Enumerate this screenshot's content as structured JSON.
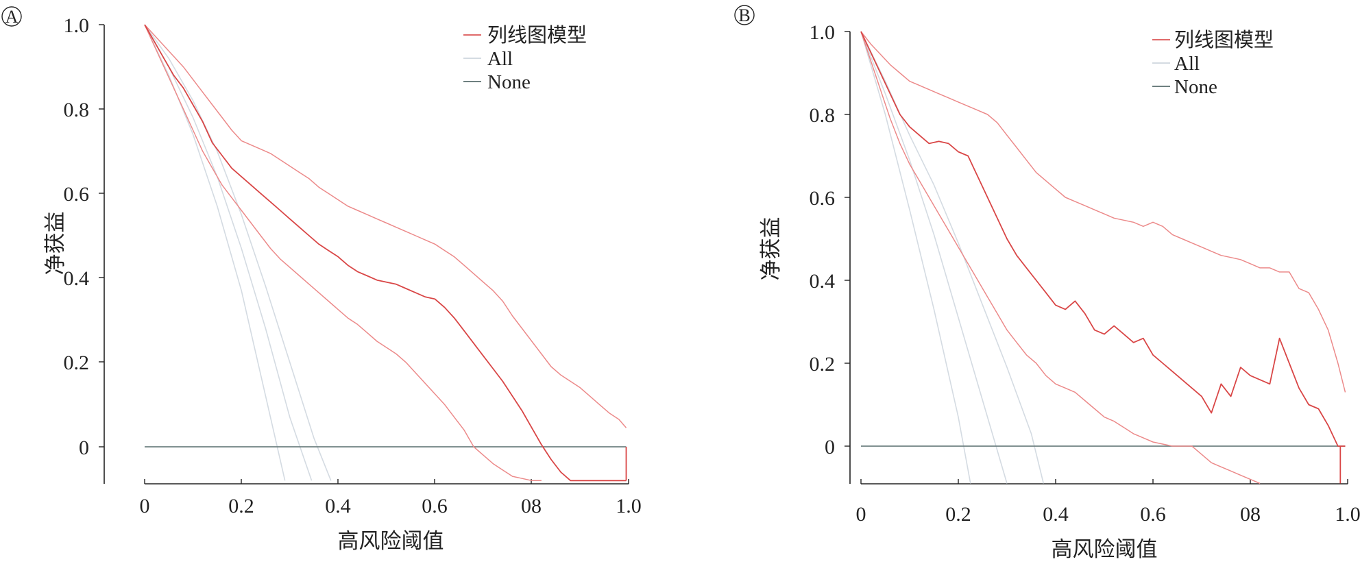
{
  "chart_data": [
    {
      "type": "line",
      "panel": "A",
      "xlabel": "高风险阈值",
      "ylabel": "净获益",
      "xlim": [
        0,
        1
      ],
      "ylim": [
        -0.08,
        1.0
      ],
      "x_ticks": [
        "0",
        "0.2",
        "0.4",
        "0.6",
        "08",
        "1.0"
      ],
      "y_ticks": [
        "1.0",
        "0.8",
        "0.6",
        "0.4",
        "0.2",
        "0"
      ],
      "legend_position": "top-right",
      "legend": [
        {
          "label": "列线图模型",
          "color": "#e06a6a"
        },
        {
          "label": "All",
          "color": "#d4dbe2"
        },
        {
          "label": "None",
          "color": "#6e8080"
        }
      ],
      "series": [
        {
          "name": "列线图模型",
          "role": "main",
          "color": "#d94646",
          "x": [
            0,
            0.02,
            0.04,
            0.06,
            0.08,
            0.1,
            0.12,
            0.14,
            0.16,
            0.18,
            0.2,
            0.22,
            0.24,
            0.26,
            0.28,
            0.3,
            0.32,
            0.34,
            0.36,
            0.38,
            0.4,
            0.42,
            0.44,
            0.46,
            0.48,
            0.5,
            0.52,
            0.54,
            0.56,
            0.58,
            0.6,
            0.62,
            0.64,
            0.66,
            0.68,
            0.7,
            0.72,
            0.74,
            0.76,
            0.78,
            0.8,
            0.82,
            0.84,
            0.86,
            0.88,
            0.9,
            0.92,
            0.94,
            0.96,
            0.98,
            0.995
          ],
          "y": [
            1.0,
            0.96,
            0.92,
            0.88,
            0.85,
            0.81,
            0.77,
            0.72,
            0.69,
            0.66,
            0.64,
            0.62,
            0.6,
            0.58,
            0.56,
            0.54,
            0.52,
            0.5,
            0.48,
            0.465,
            0.45,
            0.43,
            0.415,
            0.405,
            0.395,
            0.39,
            0.385,
            0.375,
            0.365,
            0.355,
            0.35,
            0.33,
            0.305,
            0.275,
            0.245,
            0.215,
            0.185,
            0.155,
            0.12,
            0.085,
            0.045,
            0.005,
            -0.03,
            -0.06,
            -0.08,
            -0.08,
            -0.08,
            -0.08,
            -0.08,
            -0.08,
            -0.08
          ]
        },
        {
          "name": "列线图模型",
          "role": "upper",
          "color": "#ec8a8a",
          "x": [
            0,
            0.02,
            0.04,
            0.06,
            0.08,
            0.1,
            0.12,
            0.14,
            0.16,
            0.18,
            0.2,
            0.22,
            0.24,
            0.26,
            0.28,
            0.3,
            0.32,
            0.34,
            0.36,
            0.38,
            0.4,
            0.42,
            0.44,
            0.46,
            0.48,
            0.5,
            0.52,
            0.54,
            0.56,
            0.58,
            0.6,
            0.62,
            0.64,
            0.66,
            0.68,
            0.7,
            0.72,
            0.74,
            0.76,
            0.78,
            0.8,
            0.82,
            0.84,
            0.86,
            0.88,
            0.9,
            0.92,
            0.94,
            0.96,
            0.98,
            0.995
          ],
          "y": [
            1.0,
            0.975,
            0.95,
            0.925,
            0.9,
            0.87,
            0.84,
            0.81,
            0.78,
            0.75,
            0.725,
            0.715,
            0.705,
            0.695,
            0.68,
            0.665,
            0.65,
            0.635,
            0.615,
            0.6,
            0.585,
            0.57,
            0.56,
            0.55,
            0.54,
            0.53,
            0.52,
            0.51,
            0.5,
            0.49,
            0.48,
            0.465,
            0.45,
            0.43,
            0.41,
            0.39,
            0.37,
            0.345,
            0.31,
            0.28,
            0.25,
            0.22,
            0.19,
            0.17,
            0.155,
            0.14,
            0.12,
            0.1,
            0.08,
            0.065,
            0.045
          ]
        },
        {
          "name": "列线图模型",
          "role": "lower",
          "color": "#ec8a8a",
          "x": [
            0,
            0.02,
            0.04,
            0.06,
            0.08,
            0.1,
            0.12,
            0.14,
            0.16,
            0.18,
            0.2,
            0.22,
            0.24,
            0.26,
            0.28,
            0.3,
            0.32,
            0.34,
            0.36,
            0.38,
            0.4,
            0.42,
            0.44,
            0.46,
            0.48,
            0.5,
            0.52,
            0.54,
            0.56,
            0.58,
            0.6,
            0.62,
            0.64,
            0.66,
            0.68,
            0.7,
            0.72,
            0.74,
            0.76,
            0.78,
            0.8,
            0.82
          ],
          "y": [
            1.0,
            0.95,
            0.9,
            0.85,
            0.8,
            0.75,
            0.7,
            0.66,
            0.62,
            0.59,
            0.56,
            0.53,
            0.5,
            0.47,
            0.445,
            0.425,
            0.405,
            0.385,
            0.365,
            0.345,
            0.325,
            0.305,
            0.29,
            0.27,
            0.25,
            0.235,
            0.22,
            0.2,
            0.175,
            0.15,
            0.125,
            0.1,
            0.07,
            0.04,
            0.0,
            -0.02,
            -0.04,
            -0.055,
            -0.07,
            -0.075,
            -0.08,
            -0.08
          ]
        },
        {
          "name": "All",
          "role": "all",
          "color": "#d4dbe2",
          "x": [
            0,
            0.05,
            0.1,
            0.15,
            0.2,
            0.25,
            0.3,
            0.35,
            0.385
          ],
          "y": [
            1.0,
            0.92,
            0.82,
            0.7,
            0.55,
            0.38,
            0.2,
            0.02,
            -0.08
          ]
        },
        {
          "name": "All",
          "role": "all",
          "color": "#d4dbe2",
          "x": [
            0,
            0.05,
            0.1,
            0.15,
            0.2,
            0.25,
            0.3,
            0.345
          ],
          "y": [
            1.0,
            0.9,
            0.78,
            0.64,
            0.47,
            0.28,
            0.07,
            -0.08
          ]
        },
        {
          "name": "All",
          "role": "all",
          "color": "#d4dbe2",
          "x": [
            0,
            0.05,
            0.1,
            0.15,
            0.2,
            0.25,
            0.29
          ],
          "y": [
            1.0,
            0.88,
            0.74,
            0.57,
            0.37,
            0.12,
            -0.08
          ]
        },
        {
          "name": "None",
          "role": "none",
          "color": "#6e8080",
          "x": [
            0,
            0.995
          ],
          "y": [
            0,
            0
          ]
        },
        {
          "name": "列线图模型",
          "role": "drop",
          "color": "#d94646",
          "x": [
            0.995,
            0.995
          ],
          "y": [
            0,
            -0.08
          ]
        }
      ]
    },
    {
      "type": "line",
      "panel": "B",
      "xlabel": "高风险阈值",
      "ylabel": "净获益",
      "xlim": [
        0,
        1
      ],
      "ylim": [
        -0.09,
        1.0
      ],
      "x_ticks": [
        "0",
        "0.2",
        "0.4",
        "0.6",
        "08",
        "1.0"
      ],
      "y_ticks": [
        "1.0",
        "0.8",
        "0.6",
        "0.4",
        "0.2",
        "0"
      ],
      "legend_position": "top-right",
      "legend": [
        {
          "label": "列线图模型",
          "color": "#e06a6a"
        },
        {
          "label": "All",
          "color": "#d4dbe2"
        },
        {
          "label": "None",
          "color": "#6e8080"
        }
      ],
      "series": [
        {
          "name": "列线图模型",
          "role": "main",
          "color": "#d94646",
          "x": [
            0,
            0.02,
            0.04,
            0.06,
            0.08,
            0.1,
            0.12,
            0.14,
            0.16,
            0.18,
            0.2,
            0.22,
            0.24,
            0.26,
            0.28,
            0.3,
            0.32,
            0.34,
            0.36,
            0.38,
            0.4,
            0.42,
            0.44,
            0.46,
            0.48,
            0.5,
            0.52,
            0.54,
            0.56,
            0.58,
            0.6,
            0.62,
            0.64,
            0.66,
            0.68,
            0.7,
            0.72,
            0.74,
            0.76,
            0.78,
            0.8,
            0.82,
            0.84,
            0.86,
            0.88,
            0.9,
            0.92,
            0.94,
            0.96,
            0.98,
            0.995
          ],
          "y": [
            1.0,
            0.95,
            0.9,
            0.85,
            0.8,
            0.77,
            0.75,
            0.73,
            0.735,
            0.73,
            0.71,
            0.7,
            0.65,
            0.6,
            0.55,
            0.5,
            0.46,
            0.43,
            0.4,
            0.37,
            0.34,
            0.33,
            0.35,
            0.32,
            0.28,
            0.27,
            0.29,
            0.27,
            0.25,
            0.26,
            0.22,
            0.2,
            0.18,
            0.16,
            0.14,
            0.12,
            0.08,
            0.15,
            0.12,
            0.19,
            0.17,
            0.16,
            0.15,
            0.26,
            0.2,
            0.14,
            0.1,
            0.09,
            0.05,
            0.0,
            0.0
          ]
        },
        {
          "name": "列线图模型",
          "role": "upper",
          "color": "#ec8a8a",
          "x": [
            0,
            0.02,
            0.04,
            0.06,
            0.08,
            0.1,
            0.12,
            0.14,
            0.16,
            0.18,
            0.2,
            0.22,
            0.24,
            0.26,
            0.28,
            0.3,
            0.32,
            0.34,
            0.36,
            0.38,
            0.4,
            0.42,
            0.44,
            0.46,
            0.48,
            0.5,
            0.52,
            0.54,
            0.56,
            0.58,
            0.6,
            0.62,
            0.64,
            0.66,
            0.68,
            0.7,
            0.72,
            0.74,
            0.76,
            0.78,
            0.8,
            0.82,
            0.84,
            0.86,
            0.88,
            0.9,
            0.92,
            0.94,
            0.96,
            0.98,
            0.995
          ],
          "y": [
            1.0,
            0.97,
            0.945,
            0.92,
            0.9,
            0.88,
            0.87,
            0.86,
            0.85,
            0.84,
            0.83,
            0.82,
            0.81,
            0.8,
            0.78,
            0.75,
            0.72,
            0.69,
            0.66,
            0.64,
            0.62,
            0.6,
            0.59,
            0.58,
            0.57,
            0.56,
            0.55,
            0.545,
            0.54,
            0.53,
            0.54,
            0.53,
            0.51,
            0.5,
            0.49,
            0.48,
            0.47,
            0.46,
            0.455,
            0.45,
            0.44,
            0.43,
            0.43,
            0.42,
            0.42,
            0.38,
            0.37,
            0.33,
            0.28,
            0.2,
            0.13
          ]
        },
        {
          "name": "列线图模型",
          "role": "lower",
          "color": "#ec8a8a",
          "x": [
            0,
            0.02,
            0.04,
            0.06,
            0.08,
            0.1,
            0.12,
            0.14,
            0.16,
            0.18,
            0.2,
            0.22,
            0.24,
            0.26,
            0.28,
            0.3,
            0.32,
            0.34,
            0.36,
            0.38,
            0.4,
            0.42,
            0.44,
            0.46,
            0.48,
            0.5,
            0.52,
            0.54,
            0.56,
            0.58,
            0.6,
            0.62,
            0.64,
            0.66,
            0.68,
            0.7,
            0.72,
            0.74,
            0.76,
            0.78,
            0.8,
            0.82
          ],
          "y": [
            1.0,
            0.93,
            0.86,
            0.79,
            0.73,
            0.68,
            0.64,
            0.6,
            0.56,
            0.52,
            0.48,
            0.44,
            0.4,
            0.36,
            0.32,
            0.28,
            0.25,
            0.22,
            0.2,
            0.17,
            0.15,
            0.14,
            0.13,
            0.11,
            0.09,
            0.07,
            0.06,
            0.045,
            0.03,
            0.02,
            0.01,
            0.005,
            0.0,
            0.0,
            0.0,
            -0.02,
            -0.04,
            -0.05,
            -0.06,
            -0.07,
            -0.08,
            -0.09
          ]
        },
        {
          "name": "All",
          "role": "all",
          "color": "#d4dbe2",
          "x": [
            0,
            0.05,
            0.1,
            0.15,
            0.2,
            0.25,
            0.3,
            0.35,
            0.375
          ],
          "y": [
            1.0,
            0.88,
            0.75,
            0.63,
            0.49,
            0.34,
            0.19,
            0.03,
            -0.09
          ]
        },
        {
          "name": "All",
          "role": "all",
          "color": "#d4dbe2",
          "x": [
            0,
            0.05,
            0.1,
            0.15,
            0.2,
            0.25,
            0.3
          ],
          "y": [
            1.0,
            0.85,
            0.69,
            0.51,
            0.31,
            0.11,
            -0.09
          ]
        },
        {
          "name": "All",
          "role": "all",
          "color": "#d4dbe2",
          "x": [
            0,
            0.05,
            0.1,
            0.15,
            0.2,
            0.225
          ],
          "y": [
            1.0,
            0.8,
            0.57,
            0.33,
            0.07,
            -0.09
          ]
        },
        {
          "name": "None",
          "role": "none",
          "color": "#6e8080",
          "x": [
            0,
            0.995
          ],
          "y": [
            0,
            0
          ]
        },
        {
          "name": "列线图模型",
          "role": "drop",
          "color": "#d94646",
          "x": [
            0.985,
            0.985
          ],
          "y": [
            0,
            -0.09
          ]
        }
      ]
    }
  ]
}
